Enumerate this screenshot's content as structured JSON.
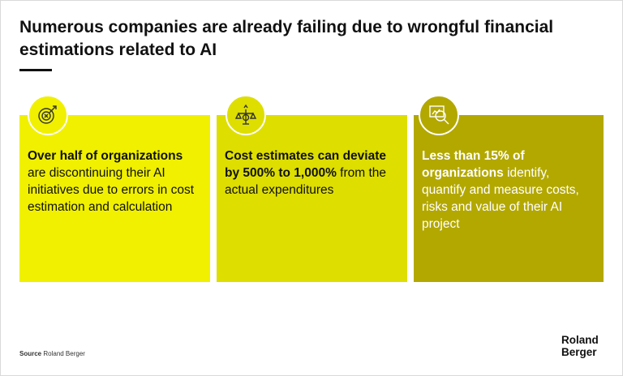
{
  "title": "Numerous companies are already failing due to wrongful financial estimations related to AI",
  "cards": [
    {
      "icon": "target-cross-icon",
      "bold": "Over half of organizations",
      "rest": " are discontinuing their AI initiatives due to errors in cost estimation and calculation",
      "color": "#f0f000"
    },
    {
      "icon": "scale-money-icon",
      "bold": "Cost estimates can deviate by 500% to 1,000%",
      "rest": " from the actual expenditures",
      "color": "#dede00"
    },
    {
      "icon": "magnifier-chart-icon",
      "bold": "Less than 15% of organizations",
      "rest": " identify, quantify and measure costs, risks and value of their AI project",
      "color": "#b3a800"
    }
  ],
  "source": {
    "label": "Source",
    "value": "Roland Berger"
  },
  "logo": {
    "line1": "Roland",
    "line2": "Berger"
  }
}
